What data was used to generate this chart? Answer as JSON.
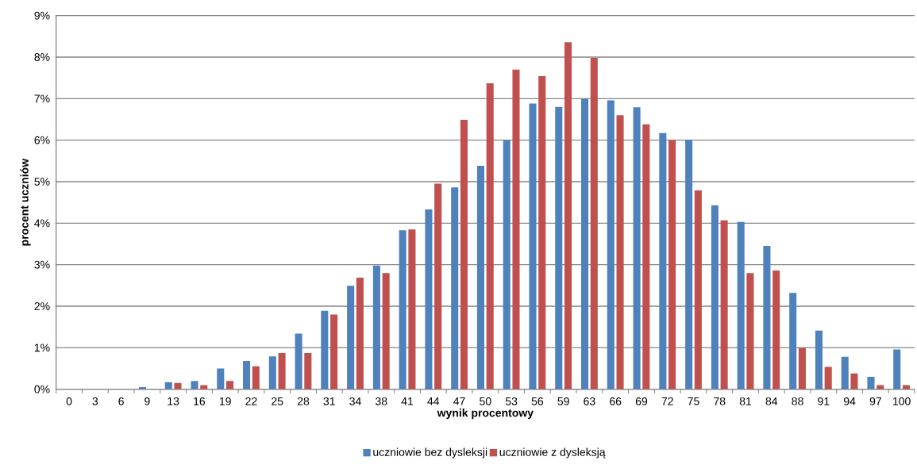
{
  "chart_data": {
    "type": "bar",
    "xlabel": "wynik procentowy",
    "ylabel": "procent uczniów",
    "categories": [
      "0",
      "3",
      "6",
      "9",
      "13",
      "16",
      "19",
      "22",
      "25",
      "28",
      "31",
      "34",
      "38",
      "41",
      "44",
      "47",
      "50",
      "53",
      "56",
      "59",
      "63",
      "66",
      "69",
      "72",
      "75",
      "78",
      "81",
      "84",
      "88",
      "91",
      "94",
      "97",
      "100"
    ],
    "series": [
      {
        "name": "uczniowie bez dysleksji",
        "color": "#4f81bd",
        "values": [
          0,
          0,
          0,
          0.05,
          0.17,
          0.2,
          0.5,
          0.68,
          0.79,
          1.34,
          1.89,
          2.49,
          2.98,
          3.83,
          4.33,
          4.86,
          5.38,
          6.0,
          6.88,
          6.8,
          7.0,
          6.96,
          6.79,
          6.17,
          6.01,
          4.43,
          4.03,
          3.45,
          2.32,
          1.41,
          0.78,
          0.3,
          0.96
        ]
      },
      {
        "name": "uczniowie z dysleksją",
        "color": "#c0504d",
        "values": [
          0,
          0,
          0,
          0,
          0.15,
          0.1,
          0.2,
          0.55,
          0.87,
          0.87,
          1.8,
          2.69,
          2.8,
          3.85,
          4.95,
          6.49,
          7.37,
          7.7,
          7.54,
          8.36,
          7.98,
          6.6,
          6.38,
          6.0,
          4.79,
          4.07,
          2.8,
          2.86,
          0.99,
          0.54,
          0.38,
          0.1,
          0.1
        ]
      }
    ],
    "ylim": [
      0,
      9
    ],
    "yticks": [
      {
        "value": 0,
        "label": "0%"
      },
      {
        "value": 1,
        "label": "1%"
      },
      {
        "value": 2,
        "label": "2%"
      },
      {
        "value": 3,
        "label": "3%"
      },
      {
        "value": 4,
        "label": "4%"
      },
      {
        "value": 5,
        "label": "5%"
      },
      {
        "value": 6,
        "label": "6%"
      },
      {
        "value": 7,
        "label": "7%"
      },
      {
        "value": 8,
        "label": "8%"
      },
      {
        "value": 9,
        "label": "9%"
      }
    ],
    "grid": "y",
    "legend": "bottom"
  }
}
